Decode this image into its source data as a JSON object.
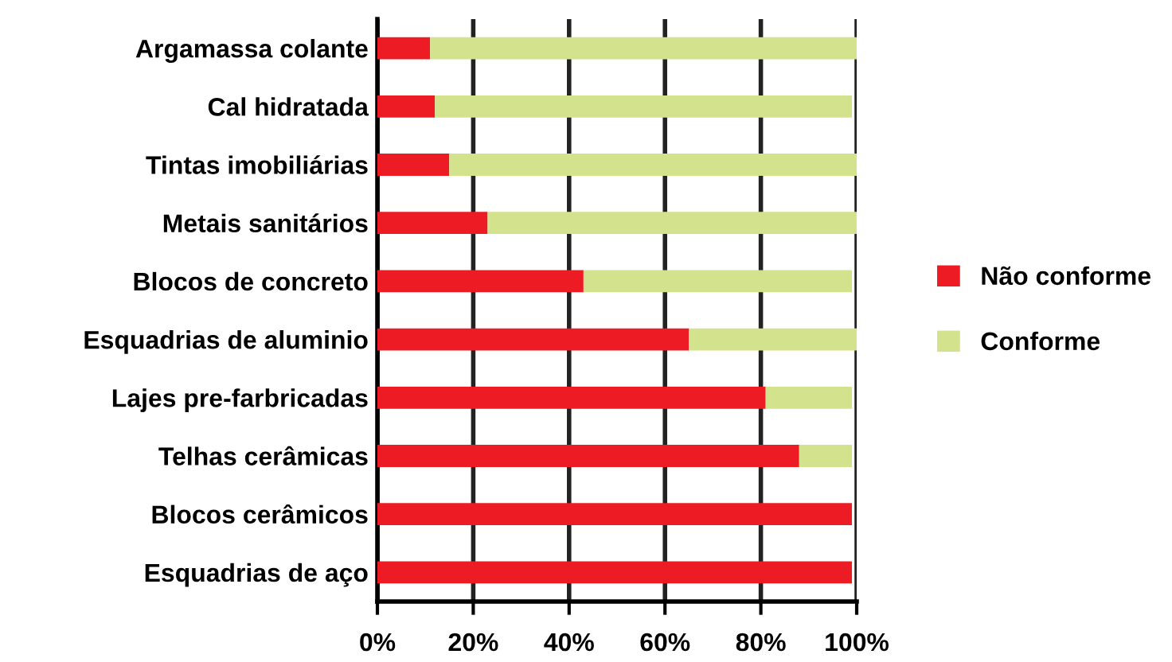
{
  "chart_data": {
    "type": "bar",
    "orientation": "horizontal",
    "stacked": true,
    "categories": [
      "Argamassa colante",
      "Cal hidratada",
      "Tintas imobiliárias",
      "Metais sanitários",
      "Blocos de concreto",
      "Esquadrias de aluminio",
      "Lajes pre-farbricadas",
      "Telhas cerâmicas",
      "Blocos cerâmicos",
      "Esquadrias de aço"
    ],
    "series": [
      {
        "name": "Não conforme",
        "color": "#ed1c24",
        "values": [
          11,
          12,
          15,
          23,
          43,
          65,
          81,
          88,
          99,
          99
        ]
      },
      {
        "name": "Conforme",
        "color": "#d3e28c",
        "values": [
          89,
          87,
          85,
          77,
          56,
          35,
          18,
          11,
          0,
          0
        ]
      }
    ],
    "xlim": [
      0,
      100
    ],
    "xticks": [
      {
        "value": 0,
        "label": "0%"
      },
      {
        "value": 20,
        "label": "20%"
      },
      {
        "value": 40,
        "label": "40%"
      },
      {
        "value": 60,
        "label": "60%"
      },
      {
        "value": 80,
        "label": "80%"
      },
      {
        "value": 100,
        "label": "100%"
      }
    ],
    "grid": "x",
    "legend": "right"
  }
}
